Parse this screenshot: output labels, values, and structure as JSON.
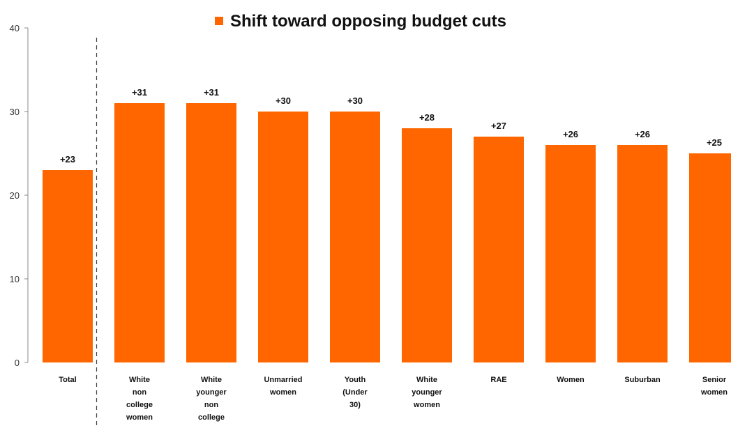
{
  "chart_data": {
    "type": "bar",
    "categories": [
      [
        "Total"
      ],
      [
        "White",
        "non",
        "college",
        "women"
      ],
      [
        "White",
        "younger",
        "non",
        "college"
      ],
      [
        "Unmarried",
        "women"
      ],
      [
        "Youth",
        "(Under",
        "30)"
      ],
      [
        "White",
        "younger",
        "women"
      ],
      [
        "RAE"
      ],
      [
        "Women"
      ],
      [
        "Suburban"
      ],
      [
        "Senior",
        "women"
      ]
    ],
    "series": [
      {
        "name": "Shift toward opposing budget cuts",
        "values": [
          23,
          31,
          31,
          30,
          30,
          28,
          27,
          26,
          26,
          25
        ]
      }
    ],
    "data_labels": [
      "+23",
      "+31",
      "+31",
      "+30",
      "+30",
      "+28",
      "+27",
      "+26",
      "+26",
      "+25"
    ],
    "y_ticks": [
      "0",
      "10",
      "20",
      "30",
      "40"
    ],
    "ylim": [
      0,
      40
    ],
    "grid": false,
    "legend_position": "top-center",
    "separator_after_category": 0,
    "bar_color": "#ff6600"
  }
}
